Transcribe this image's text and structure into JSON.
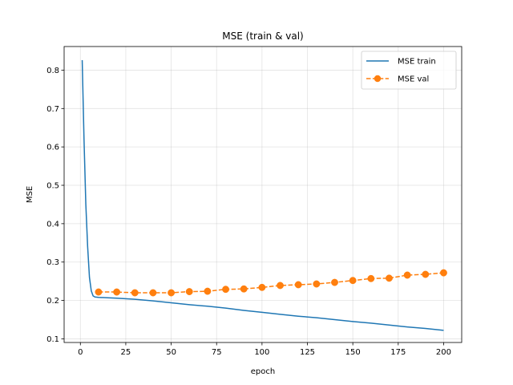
{
  "chart_data": {
    "type": "line",
    "title": "MSE (train & val)",
    "xlabel": "epoch",
    "ylabel": "MSE",
    "xlim": [
      -8.95,
      209.95
    ],
    "ylim": [
      0.0905,
      0.8615
    ],
    "xticks": [
      0,
      25,
      50,
      75,
      100,
      125,
      150,
      175,
      200
    ],
    "yticks": [
      0.1,
      0.2,
      0.3,
      0.4,
      0.5,
      0.6,
      0.7,
      0.8
    ],
    "xtick_labels": [
      "0",
      "25",
      "50",
      "75",
      "100",
      "125",
      "150",
      "175",
      "200"
    ],
    "ytick_labels": [
      "0.1",
      "0.2",
      "0.3",
      "0.4",
      "0.5",
      "0.6",
      "0.7",
      "0.8"
    ],
    "grid": true,
    "legend_position": "top-right",
    "series": [
      {
        "name": "MSE train",
        "color": "#1f77b4",
        "line_style": "solid",
        "marker": "none",
        "x": [
          1,
          2,
          3,
          4,
          5,
          6,
          7,
          8,
          10,
          15,
          20,
          30,
          40,
          50,
          60,
          70,
          80,
          90,
          100,
          110,
          120,
          130,
          140,
          150,
          160,
          170,
          180,
          190,
          200
        ],
        "y": [
          0.826,
          0.62,
          0.45,
          0.34,
          0.26,
          0.225,
          0.212,
          0.209,
          0.208,
          0.207,
          0.206,
          0.203,
          0.199,
          0.194,
          0.189,
          0.185,
          0.18,
          0.174,
          0.169,
          0.164,
          0.159,
          0.155,
          0.15,
          0.145,
          0.141,
          0.136,
          0.131,
          0.127,
          0.122
        ]
      },
      {
        "name": "MSE val",
        "color": "#ff7f0e",
        "line_style": "dashed",
        "marker": "circle",
        "x": [
          10,
          20,
          30,
          40,
          50,
          60,
          70,
          80,
          90,
          100,
          110,
          120,
          130,
          140,
          150,
          160,
          170,
          180,
          190,
          200
        ],
        "y": [
          0.222,
          0.222,
          0.22,
          0.22,
          0.22,
          0.223,
          0.224,
          0.229,
          0.23,
          0.234,
          0.239,
          0.241,
          0.243,
          0.247,
          0.252,
          0.257,
          0.258,
          0.266,
          0.268,
          0.272
        ]
      }
    ]
  }
}
